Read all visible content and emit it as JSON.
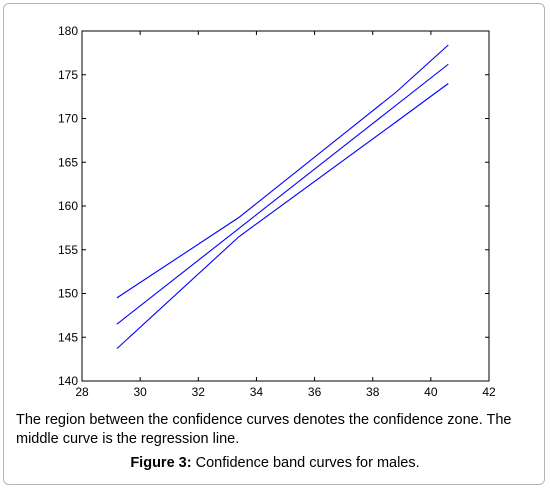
{
  "chart_data": {
    "type": "line",
    "title": "",
    "xlabel": "",
    "ylabel": "",
    "xlim": [
      28,
      42
    ],
    "ylim": [
      140,
      180
    ],
    "x_ticks": [
      28,
      30,
      32,
      34,
      36,
      38,
      40,
      42
    ],
    "y_ticks": [
      140,
      145,
      150,
      155,
      160,
      165,
      170,
      175,
      180
    ],
    "grid": false,
    "line_color": "#0000ff",
    "series": [
      {
        "x": [
          29.2,
          33.4,
          38.8,
          40.6
        ],
        "y": [
          149.5,
          158.7,
          173.0,
          178.4
        ]
      },
      {
        "x": [
          29.2,
          40.6
        ],
        "y": [
          146.5,
          176.2
        ]
      },
      {
        "x": [
          29.2,
          33.4,
          38.8,
          40.6
        ],
        "y": [
          143.7,
          156.5,
          169.6,
          174.0
        ]
      }
    ]
  },
  "caption": {
    "text": "The region between the confidence curves denotes the confidence zone. The middle curve is the regression line.",
    "figure_label": "Figure 3:",
    "figure_title": " Confidence band curves for males."
  }
}
